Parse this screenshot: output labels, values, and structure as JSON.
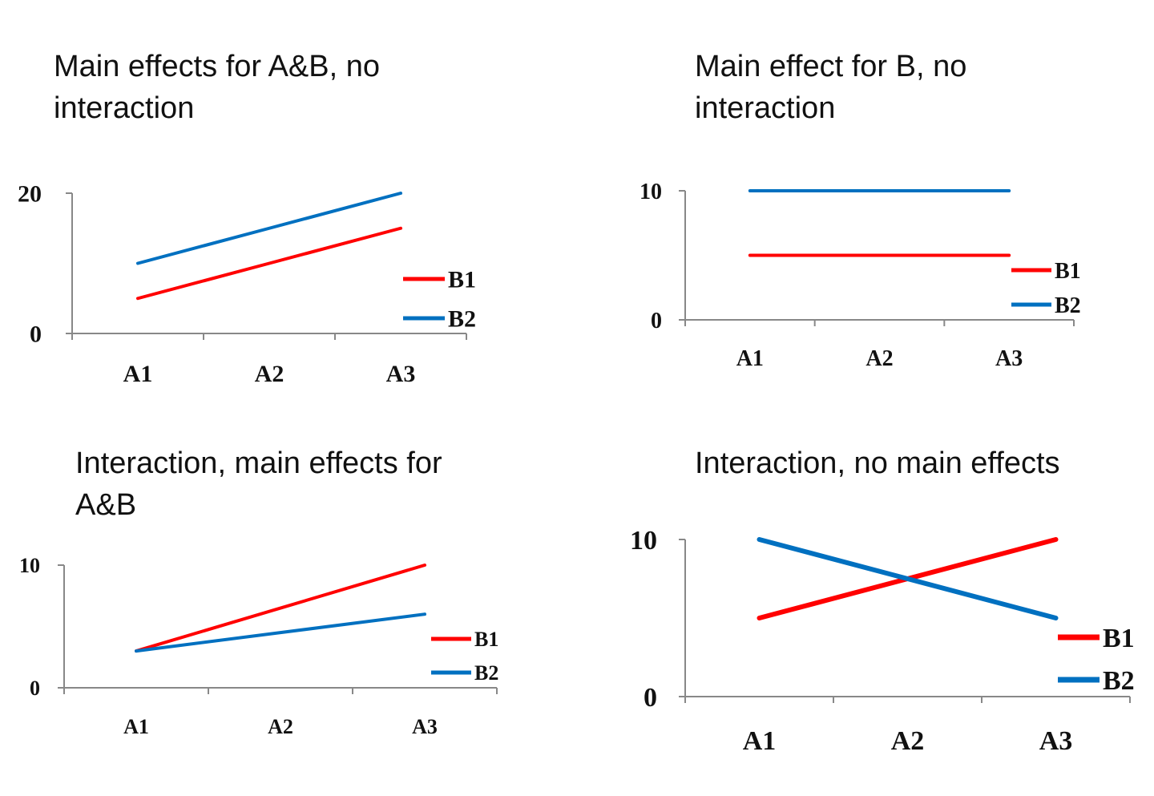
{
  "chart_data": [
    {
      "type": "line",
      "title": "Main effects for A&B, no interaction",
      "categories": [
        "A1",
        "A2",
        "A3"
      ],
      "ylim": [
        0,
        20
      ],
      "yticks": [
        0,
        20
      ],
      "grid": false,
      "legend": "right",
      "series": [
        {
          "name": "B1",
          "values": [
            5,
            10,
            15
          ],
          "color": "#ff0000"
        },
        {
          "name": "B2",
          "values": [
            10,
            15,
            20
          ],
          "color": "#0070c0"
        }
      ]
    },
    {
      "type": "line",
      "title": "Main effect for B, no interaction",
      "categories": [
        "A1",
        "A2",
        "A3"
      ],
      "ylim": [
        0,
        10
      ],
      "yticks": [
        0,
        10
      ],
      "grid": false,
      "legend": "right",
      "series": [
        {
          "name": "B1",
          "values": [
            5,
            5,
            5
          ],
          "color": "#ff0000"
        },
        {
          "name": "B2",
          "values": [
            10,
            10,
            10
          ],
          "color": "#0070c0"
        }
      ]
    },
    {
      "type": "line",
      "title": "Interaction, main effects for A&B",
      "categories": [
        "A1",
        "A2",
        "A3"
      ],
      "ylim": [
        0,
        10
      ],
      "yticks": [
        0,
        10
      ],
      "grid": false,
      "legend": "right",
      "series": [
        {
          "name": "B1",
          "values": [
            3,
            6.5,
            10
          ],
          "color": "#ff0000"
        },
        {
          "name": "B2",
          "values": [
            3,
            4.5,
            6
          ],
          "color": "#0070c0"
        }
      ]
    },
    {
      "type": "line",
      "title": "Interaction, no main effects",
      "categories": [
        "A1",
        "A2",
        "A3"
      ],
      "ylim": [
        0,
        10
      ],
      "yticks": [
        0,
        10
      ],
      "grid": false,
      "legend": "right",
      "series": [
        {
          "name": "B1",
          "values": [
            5,
            7.5,
            10
          ],
          "color": "#ff0000"
        },
        {
          "name": "B2",
          "values": [
            10,
            7.5,
            5
          ],
          "color": "#0070c0"
        }
      ]
    }
  ]
}
